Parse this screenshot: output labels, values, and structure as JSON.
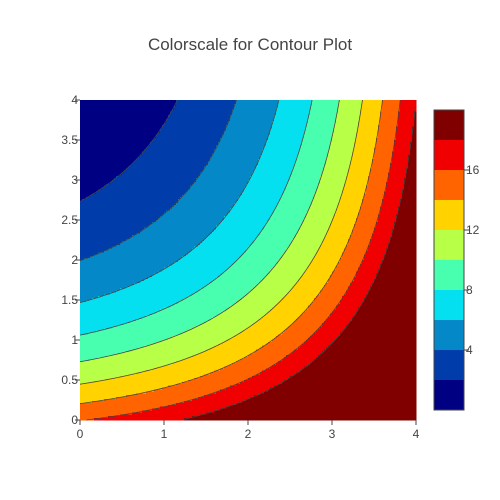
{
  "chart_data": {
    "type": "contour",
    "title": "Colorscale for Contour Plot",
    "xlabel": "",
    "ylabel": "",
    "xlim": [
      0,
      4
    ],
    "ylim": [
      0,
      4
    ],
    "x_ticks": [
      "0",
      "1",
      "2",
      "3",
      "4"
    ],
    "y_ticks": [
      "0",
      "0.5",
      "1",
      "1.5",
      "2",
      "2.5",
      "3",
      "3.5",
      "4"
    ],
    "z_range": [
      0,
      18
    ],
    "contour_step": 2,
    "colorbar": {
      "tick_labels": [
        "4",
        "8",
        "12",
        "16"
      ],
      "levels": [
        {
          "range": [
            0,
            2
          ],
          "color": "#000083"
        },
        {
          "range": [
            2,
            4
          ],
          "color": "#003caa"
        },
        {
          "range": [
            4,
            6
          ],
          "color": "#0588c8"
        },
        {
          "range": [
            6,
            8
          ],
          "color": "#05e0f0"
        },
        {
          "range": [
            8,
            10
          ],
          "color": "#48ffb0"
        },
        {
          "range": [
            10,
            12
          ],
          "color": "#b8ff48"
        },
        {
          "range": [
            12,
            14
          ],
          "color": "#ffd200"
        },
        {
          "range": [
            14,
            16
          ],
          "color": "#ff6400"
        },
        {
          "range": [
            16,
            18
          ],
          "color": "#f00000"
        },
        {
          "range": [
            18,
            20
          ],
          "color": "#800000"
        }
      ]
    },
    "grid": false,
    "legend": "none"
  }
}
